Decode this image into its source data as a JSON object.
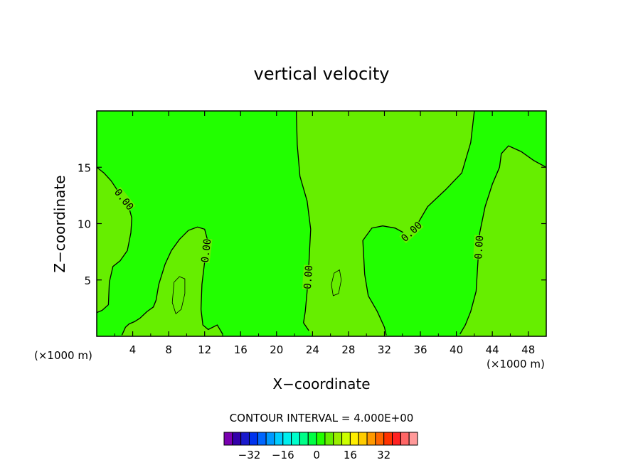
{
  "chart_data": {
    "type": "contour",
    "title": "vertical velocity",
    "xlabel": "X−coordinate",
    "ylabel": "Z−coordinate",
    "x_unit_left": "(×1000 m)",
    "x_unit_right": "(×1000 m)",
    "xlim": [
      0,
      50
    ],
    "ylim": [
      0,
      20
    ],
    "x_ticks": [
      4,
      8,
      12,
      16,
      20,
      24,
      28,
      32,
      36,
      40,
      44,
      48
    ],
    "x_tick_labels": [
      "4",
      "8",
      "12",
      "16",
      "20",
      "24",
      "28",
      "32",
      "36",
      "40",
      "44",
      "48"
    ],
    "y_ticks": [
      5,
      10,
      15
    ],
    "y_tick_labels": [
      "5",
      "10",
      "15"
    ],
    "contour_interval_label": "CONTOUR INTERVAL = 4.000E+00",
    "contour_labels": [
      "0.00",
      "0.00",
      "0.00",
      "0.00",
      "0.00"
    ],
    "colors": {
      "negative_fill": "#22ff00",
      "positive_fill": "#66ee00",
      "plot_background": "#ffffff"
    },
    "contours": [
      {
        "level": 0,
        "points": [
          [
            0,
            15.0
          ],
          [
            0.8,
            14.5
          ],
          [
            1.6,
            13.8
          ],
          [
            2.6,
            12.6
          ],
          [
            3.5,
            11.7
          ],
          [
            3.9,
            10.5
          ],
          [
            3.8,
            9.2
          ],
          [
            3.4,
            7.6
          ],
          [
            2.6,
            6.7
          ],
          [
            1.8,
            6.2
          ],
          [
            1.4,
            4.8
          ],
          [
            1.3,
            2.8
          ],
          [
            0.6,
            2.3
          ],
          [
            0,
            2.1
          ]
        ]
      },
      {
        "level": 0,
        "points": [
          [
            2.8,
            0.1
          ],
          [
            3.2,
            0.8
          ],
          [
            3.6,
            1.1
          ],
          [
            4.2,
            1.3
          ],
          [
            4.8,
            1.6
          ],
          [
            5.6,
            2.2
          ],
          [
            6.3,
            2.6
          ],
          [
            6.6,
            3.2
          ],
          [
            6.9,
            4.6
          ],
          [
            7.6,
            6.4
          ],
          [
            8.3,
            7.6
          ],
          [
            9.2,
            8.6
          ],
          [
            10.2,
            9.4
          ],
          [
            11.2,
            9.7
          ],
          [
            12.0,
            9.5
          ],
          [
            12.3,
            8.6
          ],
          [
            12.0,
            6.6
          ],
          [
            11.7,
            4.6
          ],
          [
            11.6,
            2.4
          ],
          [
            11.8,
            1.0
          ],
          [
            12.4,
            0.6
          ],
          [
            13.4,
            1.0
          ],
          [
            14.0,
            0.2
          ]
        ]
      },
      {
        "level": 0,
        "points": [
          [
            22.2,
            20.0
          ],
          [
            22.3,
            17.0
          ],
          [
            22.6,
            14.2
          ],
          [
            23.4,
            12.0
          ],
          [
            23.8,
            9.5
          ],
          [
            23.6,
            6.5
          ],
          [
            23.4,
            4.0
          ],
          [
            23.2,
            2.2
          ],
          [
            23.0,
            1.2
          ],
          [
            23.6,
            0.5
          ]
        ]
      },
      {
        "level": 0,
        "points": [
          [
            42.0,
            20.0
          ],
          [
            41.6,
            17.2
          ],
          [
            40.6,
            14.5
          ],
          [
            38.8,
            13.0
          ],
          [
            36.8,
            11.5
          ],
          [
            35.4,
            9.6
          ],
          [
            34.6,
            9.0
          ],
          [
            33.2,
            9.6
          ],
          [
            31.8,
            9.8
          ],
          [
            30.6,
            9.6
          ],
          [
            29.6,
            8.5
          ],
          [
            29.8,
            5.5
          ],
          [
            30.2,
            3.6
          ],
          [
            31.2,
            2.2
          ],
          [
            32.0,
            0.8
          ],
          [
            32.2,
            0.1
          ]
        ]
      },
      {
        "level": 0,
        "points": [
          [
            50.0,
            15.0
          ],
          [
            48.6,
            15.6
          ],
          [
            47.2,
            16.4
          ],
          [
            45.8,
            16.9
          ],
          [
            45.0,
            16.2
          ],
          [
            44.8,
            15.0
          ],
          [
            44.0,
            13.5
          ],
          [
            43.2,
            11.5
          ],
          [
            42.6,
            9.2
          ],
          [
            42.4,
            6.6
          ],
          [
            42.2,
            4.0
          ],
          [
            41.6,
            2.2
          ],
          [
            41.0,
            1.0
          ],
          [
            40.4,
            0.2
          ]
        ]
      },
      {
        "level": 4,
        "points": [
          [
            8.6,
            4.8
          ],
          [
            9.2,
            5.3
          ],
          [
            9.8,
            5.1
          ],
          [
            9.8,
            3.8
          ],
          [
            9.4,
            2.4
          ],
          [
            8.8,
            2.0
          ],
          [
            8.4,
            3.0
          ],
          [
            8.6,
            4.8
          ]
        ]
      },
      {
        "level": 4,
        "points": [
          [
            26.4,
            5.6
          ],
          [
            27.0,
            5.9
          ],
          [
            27.2,
            5.0
          ],
          [
            26.9,
            3.8
          ],
          [
            26.3,
            3.6
          ],
          [
            26.1,
            4.6
          ],
          [
            26.4,
            5.6
          ]
        ]
      }
    ],
    "filled_regions_positive": [
      [
        [
          0,
          15.0
        ],
        [
          0.8,
          14.5
        ],
        [
          1.6,
          13.8
        ],
        [
          2.6,
          12.6
        ],
        [
          3.5,
          11.7
        ],
        [
          3.9,
          10.5
        ],
        [
          3.8,
          9.2
        ],
        [
          3.4,
          7.6
        ],
        [
          2.6,
          6.7
        ],
        [
          1.8,
          6.2
        ],
        [
          1.4,
          4.8
        ],
        [
          1.3,
          2.8
        ],
        [
          0.6,
          2.3
        ],
        [
          0,
          2.1
        ]
      ],
      [
        [
          2.8,
          0.1
        ],
        [
          3.2,
          0.8
        ],
        [
          3.6,
          1.1
        ],
        [
          4.2,
          1.3
        ],
        [
          4.8,
          1.6
        ],
        [
          5.6,
          2.2
        ],
        [
          6.3,
          2.6
        ],
        [
          6.6,
          3.2
        ],
        [
          6.9,
          4.6
        ],
        [
          7.6,
          6.4
        ],
        [
          8.3,
          7.6
        ],
        [
          9.2,
          8.6
        ],
        [
          10.2,
          9.4
        ],
        [
          11.2,
          9.7
        ],
        [
          12.0,
          9.5
        ],
        [
          12.3,
          8.6
        ],
        [
          12.0,
          6.6
        ],
        [
          11.7,
          4.6
        ],
        [
          11.6,
          2.4
        ],
        [
          11.8,
          1.0
        ],
        [
          12.4,
          0.6
        ],
        [
          13.4,
          1.0
        ],
        [
          14.0,
          0.0
        ],
        [
          2.8,
          0.0
        ]
      ],
      [
        [
          22.2,
          20.0
        ],
        [
          22.3,
          17.0
        ],
        [
          22.6,
          14.2
        ],
        [
          23.4,
          12.0
        ],
        [
          23.8,
          9.5
        ],
        [
          23.6,
          6.5
        ],
        [
          23.4,
          4.0
        ],
        [
          23.2,
          2.2
        ],
        [
          23.0,
          1.2
        ],
        [
          23.6,
          0.5
        ],
        [
          24.0,
          0.0
        ],
        [
          32.2,
          0.0
        ],
        [
          32.0,
          0.8
        ],
        [
          31.2,
          2.2
        ],
        [
          30.2,
          3.6
        ],
        [
          29.8,
          5.5
        ],
        [
          29.6,
          8.5
        ],
        [
          30.6,
          9.6
        ],
        [
          31.8,
          9.8
        ],
        [
          33.2,
          9.6
        ],
        [
          34.6,
          9.0
        ],
        [
          35.4,
          9.6
        ],
        [
          36.8,
          11.5
        ],
        [
          38.8,
          13.0
        ],
        [
          40.6,
          14.5
        ],
        [
          41.6,
          17.2
        ],
        [
          42.0,
          20.0
        ]
      ],
      [
        [
          50.0,
          15.0
        ],
        [
          48.6,
          15.6
        ],
        [
          47.2,
          16.4
        ],
        [
          45.8,
          16.9
        ],
        [
          45.0,
          16.2
        ],
        [
          44.8,
          15.0
        ],
        [
          44.0,
          13.5
        ],
        [
          43.2,
          11.5
        ],
        [
          42.6,
          9.2
        ],
        [
          42.4,
          6.6
        ],
        [
          42.2,
          4.0
        ],
        [
          41.6,
          2.2
        ],
        [
          41.0,
          1.0
        ],
        [
          40.4,
          0.0
        ],
        [
          50.0,
          0.0
        ]
      ]
    ],
    "colorbar": {
      "colors": [
        "#7a00b0",
        "#3300aa",
        "#1a1acc",
        "#0033ee",
        "#0066ff",
        "#0099ff",
        "#00ccff",
        "#00eeee",
        "#00ffcc",
        "#00ff88",
        "#00ff44",
        "#22ff00",
        "#66ee00",
        "#99ee00",
        "#ccff00",
        "#ffee00",
        "#ffcc00",
        "#ff9900",
        "#ff6600",
        "#ff3300",
        "#ff2222",
        "#ff6666",
        "#ff9999"
      ],
      "tick_values": [
        -32,
        -16,
        0,
        16,
        32
      ],
      "tick_labels": [
        "−32",
        "−16",
        "0",
        "16",
        "32"
      ]
    }
  }
}
